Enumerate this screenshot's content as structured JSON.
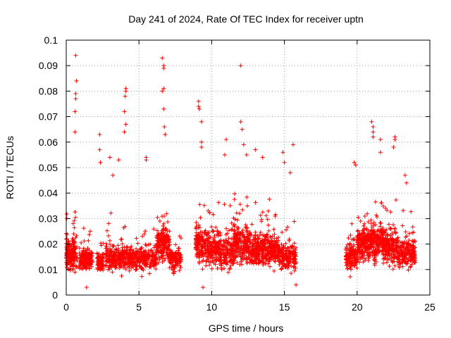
{
  "chart_data": {
    "type": "scatter",
    "title": "Day 241 of 2024, Rate Of TEC Index for receiver uptn",
    "xlabel": "GPS time / hours",
    "ylabel": "ROTI / TECUs",
    "xlim": [
      0,
      25
    ],
    "ylim": [
      0,
      0.1
    ],
    "xticks": [
      0,
      5,
      10,
      15,
      20,
      25
    ],
    "xtick_labels": [
      "0",
      "5",
      "10",
      "15",
      "20",
      "25"
    ],
    "yticks": [
      0,
      0.01,
      0.02,
      0.03,
      0.04,
      0.05,
      0.06,
      0.07,
      0.08,
      0.09,
      0.1
    ],
    "ytick_labels": [
      "0",
      "0.01",
      "0.02",
      "0.03",
      "0.04",
      "0.05",
      "0.06",
      "0.07",
      "0.08",
      "0.09",
      "0.1"
    ],
    "grid": true,
    "marker": "+",
    "marker_color": "#ff0000",
    "series": [
      {
        "name": "ROTI",
        "clusters": [
          {
            "x_range": [
              0.0,
              0.55
            ],
            "y_center": 0.016,
            "spread": 0.008,
            "count": 140
          },
          {
            "x_range": [
              0.5,
              0.75
            ],
            "y_center": 0.017,
            "spread": 0.01,
            "count": 40
          },
          {
            "x_range": [
              0.9,
              1.8
            ],
            "y_center": 0.014,
            "spread": 0.006,
            "count": 160
          },
          {
            "x_range": [
              2.1,
              2.55
            ],
            "y_center": 0.013,
            "spread": 0.005,
            "count": 80
          },
          {
            "x_range": [
              2.7,
              4.5
            ],
            "y_center": 0.015,
            "spread": 0.007,
            "count": 260
          },
          {
            "x_range": [
              4.5,
              6.2
            ],
            "y_center": 0.014,
            "spread": 0.006,
            "count": 220
          },
          {
            "x_range": [
              6.2,
              7.1
            ],
            "y_center": 0.02,
            "spread": 0.009,
            "count": 180
          },
          {
            "x_range": [
              7.1,
              7.9
            ],
            "y_center": 0.014,
            "spread": 0.006,
            "count": 120
          },
          {
            "x_range": [
              8.9,
              9.6
            ],
            "y_center": 0.02,
            "spread": 0.01,
            "count": 140
          },
          {
            "x_range": [
              9.6,
              10.6
            ],
            "y_center": 0.018,
            "spread": 0.009,
            "count": 180
          },
          {
            "x_range": [
              10.6,
              11.5
            ],
            "y_center": 0.016,
            "spread": 0.008,
            "count": 140
          },
          {
            "x_range": [
              11.5,
              12.6
            ],
            "y_center": 0.02,
            "spread": 0.01,
            "count": 220
          },
          {
            "x_range": [
              12.6,
              13.8
            ],
            "y_center": 0.018,
            "spread": 0.009,
            "count": 220
          },
          {
            "x_range": [
              13.8,
              14.6
            ],
            "y_center": 0.018,
            "spread": 0.008,
            "count": 160
          },
          {
            "x_range": [
              14.6,
              15.8
            ],
            "y_center": 0.015,
            "spread": 0.007,
            "count": 180
          },
          {
            "x_range": [
              19.2,
              20.0
            ],
            "y_center": 0.015,
            "spread": 0.007,
            "count": 130
          },
          {
            "x_range": [
              20.0,
              20.9
            ],
            "y_center": 0.02,
            "spread": 0.009,
            "count": 180
          },
          {
            "x_range": [
              20.9,
              21.8
            ],
            "y_center": 0.021,
            "spread": 0.01,
            "count": 190
          },
          {
            "x_range": [
              21.8,
              22.8
            ],
            "y_center": 0.019,
            "spread": 0.009,
            "count": 190
          },
          {
            "x_range": [
              22.8,
              24.0
            ],
            "y_center": 0.016,
            "spread": 0.007,
            "count": 200
          }
        ],
        "notable_points": [
          {
            "x": 0.65,
            "y": 0.094
          },
          {
            "x": 0.7,
            "y": 0.084
          },
          {
            "x": 0.65,
            "y": 0.079
          },
          {
            "x": 0.65,
            "y": 0.077
          },
          {
            "x": 0.6,
            "y": 0.072
          },
          {
            "x": 0.6,
            "y": 0.064
          },
          {
            "x": 2.3,
            "y": 0.063
          },
          {
            "x": 2.3,
            "y": 0.057
          },
          {
            "x": 2.35,
            "y": 0.052
          },
          {
            "x": 3.0,
            "y": 0.054
          },
          {
            "x": 3.2,
            "y": 0.047
          },
          {
            "x": 3.6,
            "y": 0.053
          },
          {
            "x": 4.1,
            "y": 0.081
          },
          {
            "x": 4.1,
            "y": 0.08
          },
          {
            "x": 4.05,
            "y": 0.078
          },
          {
            "x": 4.0,
            "y": 0.072
          },
          {
            "x": 4.1,
            "y": 0.067
          },
          {
            "x": 4.0,
            "y": 0.064
          },
          {
            "x": 5.5,
            "y": 0.054
          },
          {
            "x": 5.5,
            "y": 0.053
          },
          {
            "x": 6.6,
            "y": 0.093
          },
          {
            "x": 6.7,
            "y": 0.09
          },
          {
            "x": 6.7,
            "y": 0.089
          },
          {
            "x": 6.7,
            "y": 0.081
          },
          {
            "x": 6.6,
            "y": 0.08
          },
          {
            "x": 6.7,
            "y": 0.073
          },
          {
            "x": 6.75,
            "y": 0.066
          },
          {
            "x": 6.8,
            "y": 0.063
          },
          {
            "x": 9.1,
            "y": 0.076
          },
          {
            "x": 9.1,
            "y": 0.074
          },
          {
            "x": 9.15,
            "y": 0.073
          },
          {
            "x": 9.3,
            "y": 0.068
          },
          {
            "x": 9.3,
            "y": 0.06
          },
          {
            "x": 9.3,
            "y": 0.058
          },
          {
            "x": 11.0,
            "y": 0.061
          },
          {
            "x": 10.9,
            "y": 0.055
          },
          {
            "x": 12.0,
            "y": 0.09
          },
          {
            "x": 12.0,
            "y": 0.068
          },
          {
            "x": 12.1,
            "y": 0.065
          },
          {
            "x": 12.2,
            "y": 0.059
          },
          {
            "x": 12.4,
            "y": 0.055
          },
          {
            "x": 13.0,
            "y": 0.057
          },
          {
            "x": 13.5,
            "y": 0.054
          },
          {
            "x": 14.9,
            "y": 0.056
          },
          {
            "x": 15.0,
            "y": 0.052
          },
          {
            "x": 15.6,
            "y": 0.059
          },
          {
            "x": 15.4,
            "y": 0.048
          },
          {
            "x": 19.8,
            "y": 0.052
          },
          {
            "x": 19.9,
            "y": 0.051
          },
          {
            "x": 21.0,
            "y": 0.068
          },
          {
            "x": 21.1,
            "y": 0.066
          },
          {
            "x": 21.1,
            "y": 0.064
          },
          {
            "x": 21.1,
            "y": 0.062
          },
          {
            "x": 21.6,
            "y": 0.061
          },
          {
            "x": 21.6,
            "y": 0.056
          },
          {
            "x": 22.6,
            "y": 0.062
          },
          {
            "x": 22.6,
            "y": 0.061
          },
          {
            "x": 22.5,
            "y": 0.058
          },
          {
            "x": 23.3,
            "y": 0.047
          },
          {
            "x": 23.4,
            "y": 0.044
          },
          {
            "x": 1.4,
            "y": 0.003
          },
          {
            "x": 9.4,
            "y": 0.003
          },
          {
            "x": 15.8,
            "y": 0.004
          }
        ]
      }
    ]
  }
}
